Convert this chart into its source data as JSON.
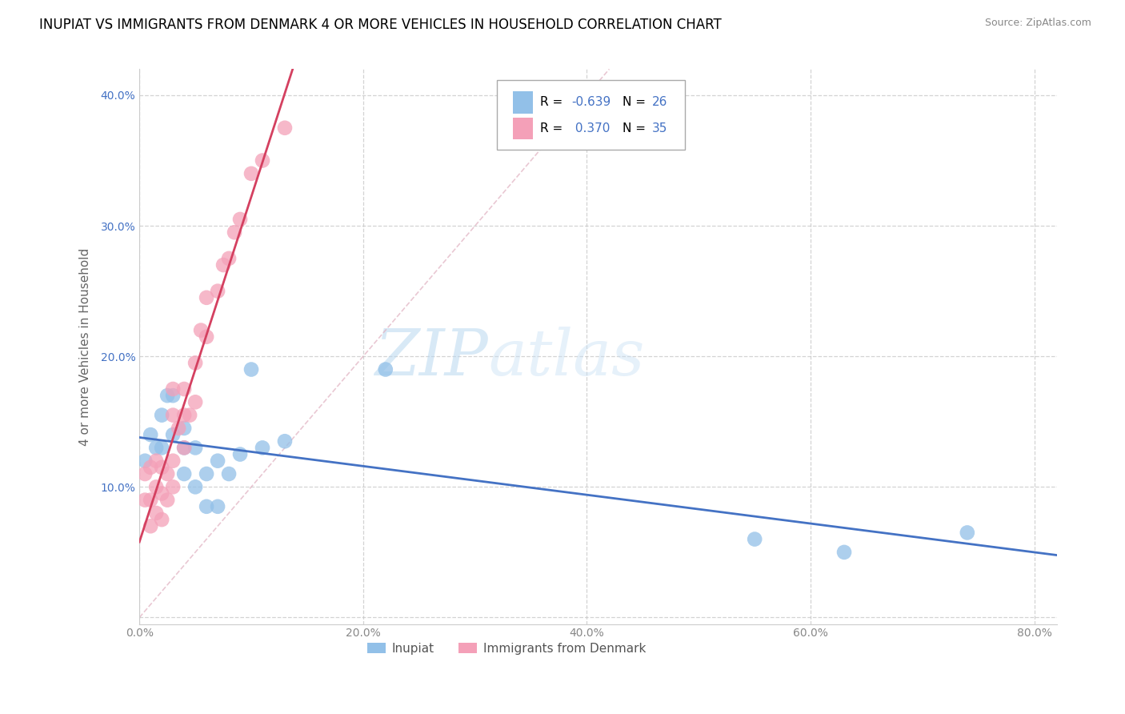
{
  "title": "INUPIAT VS IMMIGRANTS FROM DENMARK 4 OR MORE VEHICLES IN HOUSEHOLD CORRELATION CHART",
  "source": "Source: ZipAtlas.com",
  "ylabel": "4 or more Vehicles in Household",
  "xlim": [
    0.0,
    0.82
  ],
  "ylim": [
    -0.005,
    0.42
  ],
  "xticks": [
    0.0,
    0.2,
    0.4,
    0.6,
    0.8
  ],
  "yticks": [
    0.0,
    0.1,
    0.2,
    0.3,
    0.4
  ],
  "xtick_labels": [
    "0.0%",
    "20.0%",
    "40.0%",
    "60.0%",
    "80.0%"
  ],
  "ytick_labels": [
    "",
    "10.0%",
    "20.0%",
    "30.0%",
    "40.0%"
  ],
  "series1_label": "Inupiat",
  "series2_label": "Immigrants from Denmark",
  "series1_color": "#92c0e8",
  "series2_color": "#f4a0b8",
  "series1_line_color": "#4472c4",
  "series2_line_color": "#d44060",
  "R1": -0.639,
  "N1": 26,
  "R2": 0.37,
  "N2": 35,
  "inupiat_x": [
    0.005,
    0.01,
    0.015,
    0.02,
    0.02,
    0.025,
    0.03,
    0.03,
    0.04,
    0.04,
    0.04,
    0.05,
    0.05,
    0.06,
    0.06,
    0.07,
    0.07,
    0.08,
    0.09,
    0.1,
    0.11,
    0.13,
    0.22,
    0.55,
    0.63,
    0.74
  ],
  "inupiat_y": [
    0.12,
    0.14,
    0.13,
    0.13,
    0.155,
    0.17,
    0.14,
    0.17,
    0.11,
    0.13,
    0.145,
    0.1,
    0.13,
    0.085,
    0.11,
    0.085,
    0.12,
    0.11,
    0.125,
    0.19,
    0.13,
    0.135,
    0.19,
    0.06,
    0.05,
    0.065
  ],
  "denmark_x": [
    0.005,
    0.005,
    0.01,
    0.01,
    0.01,
    0.015,
    0.015,
    0.015,
    0.02,
    0.02,
    0.02,
    0.025,
    0.025,
    0.03,
    0.03,
    0.03,
    0.03,
    0.035,
    0.04,
    0.04,
    0.04,
    0.045,
    0.05,
    0.05,
    0.055,
    0.06,
    0.06,
    0.07,
    0.075,
    0.08,
    0.085,
    0.09,
    0.1,
    0.11,
    0.13
  ],
  "denmark_y": [
    0.09,
    0.11,
    0.07,
    0.09,
    0.115,
    0.08,
    0.1,
    0.12,
    0.075,
    0.095,
    0.115,
    0.09,
    0.11,
    0.1,
    0.12,
    0.155,
    0.175,
    0.145,
    0.13,
    0.155,
    0.175,
    0.155,
    0.165,
    0.195,
    0.22,
    0.215,
    0.245,
    0.25,
    0.27,
    0.275,
    0.295,
    0.305,
    0.34,
    0.35,
    0.375
  ],
  "watermark_zip": "ZIP",
  "watermark_atlas": "atlas",
  "background_color": "#ffffff",
  "grid_color": "#c8c8c8",
  "title_fontsize": 12,
  "label_fontsize": 11,
  "tick_fontsize": 10,
  "legend_r_color": "#4472c4",
  "ytick_color": "#4472c4",
  "xtick_color": "#888888"
}
